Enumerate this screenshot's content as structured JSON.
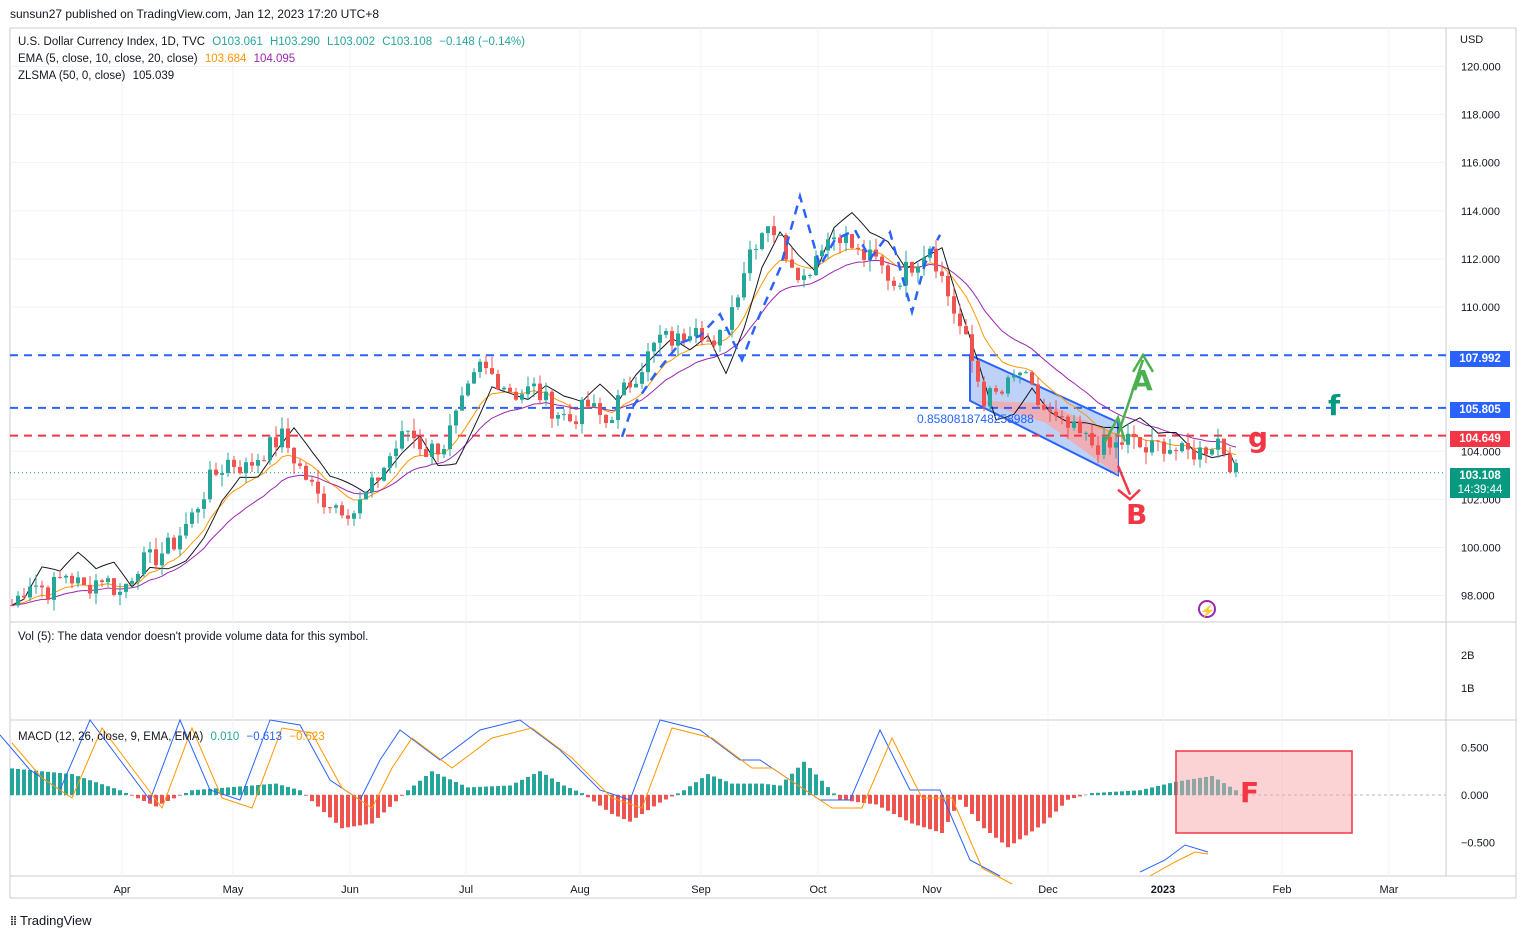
{
  "header": "sunsun27 published on TradingView.com, Jan 12, 2023 17:20 UTC+8",
  "currency": "USD",
  "legend": {
    "symbol_line": "U.S. Dollar Currency Index, 1D, TVC",
    "ohlc": {
      "o": "O103.061",
      "h": "H103.290",
      "l": "L103.002",
      "c": "C103.108",
      "chg": "−0.148 (−0.14%)"
    },
    "ema_line": "EMA (5, close, 10, close, 20, close)",
    "ema_values": [
      "103.684",
      "104.095"
    ],
    "zlsma_line": "ZLSMA (50, 0, close)",
    "zlsma_value": "105.039",
    "vol_line": "Vol (5): The data vendor doesn't provide volume data for this symbol.",
    "macd_line": "MACD (12, 26, close, 9, EMA, EMA)",
    "macd_values": [
      "0.010",
      "−0.613",
      "−0.623"
    ]
  },
  "price_labels": {
    "r1": "107.992",
    "r2": "105.805",
    "r3": "104.649",
    "last": "103.108",
    "countdown": "14:39:44"
  },
  "annotations": {
    "fib_text": "0.8580818748258988",
    "letter_A": "A",
    "letter_B": "B",
    "letter_f": "f",
    "letter_g": "g",
    "letter_F": "F",
    "flash_icon": "⚡"
  },
  "footer": "TradingView",
  "colors": {
    "up": "#26a69a",
    "down": "#ef5350",
    "blue_line": "#2962ff",
    "red_line": "#f23645",
    "ema_fast": "#ff9800",
    "ema_slow": "#9c27b0",
    "zlsma": "#131722",
    "channel_fill": "#aec6f5",
    "channel_red": "#f7a8aa"
  },
  "chart_data": {
    "type": "candlestick",
    "title": "U.S. Dollar Currency Index, 1D, TVC",
    "price_axis": {
      "ticks": [
        "120.000",
        "118.000",
        "116.000",
        "114.000",
        "112.000",
        "110.000",
        "104.000",
        "102.000",
        "100.000",
        "98.000"
      ],
      "ylim": [
        96.9,
        121.6
      ]
    },
    "x_axis": {
      "ticks": [
        "Apr",
        "May",
        "Jun",
        "Jul",
        "Aug",
        "Sep",
        "Oct",
        "Nov",
        "Dec",
        "2023",
        "Feb",
        "Mar"
      ]
    },
    "horizontal_lines": [
      107.992,
      105.805,
      104.649
    ],
    "close_path": [
      [
        0,
        97.6
      ],
      [
        3,
        98.6
      ],
      [
        6,
        98.2
      ],
      [
        9,
        98.9
      ],
      [
        12,
        98.3
      ],
      [
        15,
        98.8
      ],
      [
        18,
        98.1
      ],
      [
        21,
        99.3
      ],
      [
        24,
        99.6
      ],
      [
        27,
        100.2
      ],
      [
        30,
        101.3
      ],
      [
        33,
        102.8
      ],
      [
        36,
        103.6
      ],
      [
        39,
        103.3
      ],
      [
        42,
        104.0
      ],
      [
        45,
        104.6
      ],
      [
        48,
        103.3
      ],
      [
        51,
        102.1
      ],
      [
        54,
        101.8
      ],
      [
        57,
        101.5
      ],
      [
        60,
        102.5
      ],
      [
        63,
        103.8
      ],
      [
        66,
        104.9
      ],
      [
        69,
        104.0
      ],
      [
        72,
        104.3
      ],
      [
        75,
        105.9
      ],
      [
        78,
        107.5
      ],
      [
        81,
        107.0
      ],
      [
        84,
        106.4
      ],
      [
        87,
        106.6
      ],
      [
        90,
        105.8
      ],
      [
        93,
        105.3
      ],
      [
        96,
        105.9
      ],
      [
        99,
        105.2
      ],
      [
        102,
        106.5
      ],
      [
        105,
        107.6
      ],
      [
        108,
        108.7
      ],
      [
        111,
        108.6
      ],
      [
        114,
        109.5
      ],
      [
        117,
        108.1
      ],
      [
        120,
        110.0
      ],
      [
        123,
        112.4
      ],
      [
        126,
        113.6
      ],
      [
        129,
        112.3
      ],
      [
        132,
        111.2
      ],
      [
        135,
        112.7
      ],
      [
        138,
        113.1
      ],
      [
        141,
        112.2
      ],
      [
        144,
        111.9
      ],
      [
        147,
        111.0
      ],
      [
        150,
        111.8
      ],
      [
        153,
        112.6
      ],
      [
        156,
        110.5
      ],
      [
        159,
        108.5
      ],
      [
        162,
        106.2
      ],
      [
        165,
        106.4
      ],
      [
        168,
        107.3
      ],
      [
        171,
        106.0
      ],
      [
        174,
        105.2
      ],
      [
        177,
        104.8
      ],
      [
        180,
        104.3
      ],
      [
        183,
        104.1
      ],
      [
        186,
        104.5
      ],
      [
        189,
        104.0
      ],
      [
        192,
        104.3
      ],
      [
        195,
        103.9
      ],
      [
        198,
        104.0
      ],
      [
        201,
        104.5
      ],
      [
        204,
        103.1
      ]
    ],
    "macd": {
      "ticks": [
        "0.500",
        "0.000",
        "−0.500"
      ],
      "histogram_shape": "positive Mar-Apr, negative May-Jun, positive Jun-Jul, negative Aug, positive Sep, negative Oct-Nov, positive Dec-Jan"
    }
  }
}
